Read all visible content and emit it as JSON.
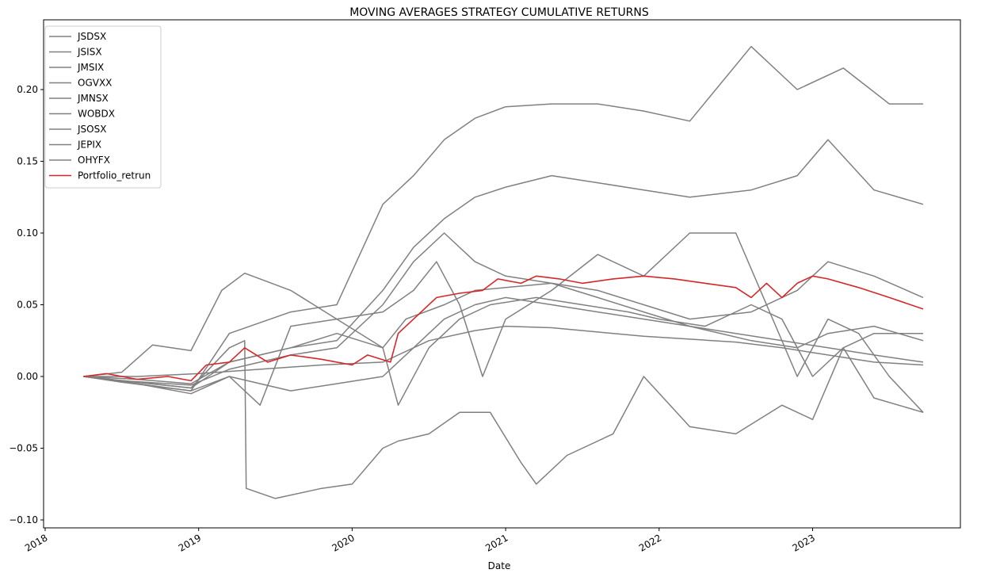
{
  "chart_data": {
    "type": "line",
    "title": "MOVING AVERAGES STRATEGY CUMULATIVE RETURNS",
    "xlabel": "Date",
    "ylabel": "",
    "xlim": [
      2017.9,
      2023.95
    ],
    "ylim": [
      -0.1,
      0.2
    ],
    "x_ticks": [
      {
        "value": 2018,
        "label": "2018"
      },
      {
        "value": 2019,
        "label": "2019"
      },
      {
        "value": 2020,
        "label": "2020"
      },
      {
        "value": 2021,
        "label": "2021"
      },
      {
        "value": 2022,
        "label": "2022"
      },
      {
        "value": 2023,
        "label": "2023"
      }
    ],
    "y_ticks": [
      {
        "value": -0.1,
        "label": "−0.10"
      },
      {
        "value": -0.05,
        "label": "−0.05"
      },
      {
        "value": 0.0,
        "label": "0.00"
      },
      {
        "value": 0.05,
        "label": "0.05"
      },
      {
        "value": 0.1,
        "label": "0.10"
      },
      {
        "value": 0.15,
        "label": "0.15"
      },
      {
        "value": 0.2,
        "label": "0.20"
      }
    ],
    "grid": false,
    "legend_placement": "top-left",
    "series": [
      {
        "name": "JSDSX",
        "color": "#808080",
        "x": [
          2018.25,
          2018.5,
          2018.95,
          2019.2,
          2019.6,
          2019.9,
          2020.2,
          2020.4,
          2020.6,
          2020.8,
          2021.0,
          2021.3,
          2021.6,
          2021.9,
          2022.2,
          2022.6,
          2022.9,
          2023.2,
          2023.5,
          2023.72
        ],
        "y": [
          0.0,
          -0.004,
          -0.01,
          0.03,
          0.045,
          0.05,
          0.12,
          0.14,
          0.165,
          0.18,
          0.188,
          0.19,
          0.19,
          0.185,
          0.178,
          0.23,
          0.2,
          0.215,
          0.19,
          0.19
        ]
      },
      {
        "name": "JSISX",
        "color": "#808080",
        "x": [
          2018.25,
          2018.5,
          2018.95,
          2019.2,
          2019.6,
          2019.9,
          2020.2,
          2020.4,
          2020.6,
          2020.8,
          2021.0,
          2021.3,
          2021.6,
          2021.9,
          2022.2,
          2022.6,
          2022.9,
          2023.1,
          2023.4,
          2023.72
        ],
        "y": [
          0.0,
          -0.003,
          -0.008,
          0.01,
          0.02,
          0.025,
          0.06,
          0.09,
          0.11,
          0.125,
          0.132,
          0.14,
          0.135,
          0.13,
          0.125,
          0.13,
          0.14,
          0.165,
          0.13,
          0.12
        ]
      },
      {
        "name": "JMSIX",
        "color": "#808080",
        "x": [
          2018.25,
          2018.5,
          2018.95,
          2019.2,
          2019.6,
          2019.9,
          2020.2,
          2020.4,
          2020.6,
          2020.8,
          2021.0,
          2021.3,
          2021.6,
          2021.9,
          2022.2,
          2022.6,
          2022.9,
          2023.1,
          2023.4,
          2023.72
        ],
        "y": [
          0.0,
          -0.003,
          -0.006,
          0.005,
          0.015,
          0.02,
          0.05,
          0.08,
          0.1,
          0.08,
          0.07,
          0.065,
          0.06,
          0.05,
          0.04,
          0.045,
          0.06,
          0.08,
          0.07,
          0.055
        ]
      },
      {
        "name": "OGVXX",
        "color": "#808080",
        "x": [
          2018.25,
          2018.6,
          2019.0,
          2019.4,
          2019.8,
          2020.2,
          2020.5,
          2020.8,
          2021.0,
          2021.3,
          2021.6,
          2021.9,
          2022.2,
          2022.5,
          2022.8,
          2023.1,
          2023.4,
          2023.72
        ],
        "y": [
          0.0,
          0.0,
          0.002,
          0.005,
          0.008,
          0.01,
          0.025,
          0.032,
          0.035,
          0.034,
          0.031,
          0.028,
          0.026,
          0.024,
          0.02,
          0.015,
          0.01,
          0.008
        ]
      },
      {
        "name": "JMNSX",
        "color": "#808080",
        "x": [
          2018.25,
          2018.5,
          2018.7,
          2018.95,
          2019.15,
          2019.3,
          2019.6,
          2019.9,
          2020.2,
          2020.35,
          2020.6,
          2020.8,
          2021.0,
          2021.3,
          2021.6,
          2021.9,
          2022.2,
          2022.6,
          2022.9,
          2023.1,
          2023.4,
          2023.72
        ],
        "y": [
          0.0,
          0.003,
          0.022,
          0.018,
          0.06,
          0.072,
          0.06,
          0.04,
          0.02,
          0.04,
          0.05,
          0.06,
          0.062,
          0.065,
          0.055,
          0.045,
          0.035,
          0.025,
          0.02,
          0.03,
          0.035,
          0.025
        ]
      },
      {
        "name": "WOBDX",
        "color": "#808080",
        "x": [
          2018.25,
          2018.6,
          2018.95,
          2019.2,
          2019.4,
          2019.6,
          2019.9,
          2020.2,
          2020.4,
          2020.55,
          2020.7,
          2020.85,
          2021.0,
          2021.3,
          2021.6,
          2021.9,
          2022.2,
          2022.5,
          2022.7,
          2022.9,
          2023.1,
          2023.3,
          2023.5,
          2023.72
        ],
        "y": [
          0.0,
          -0.005,
          -0.012,
          0.0,
          -0.02,
          0.035,
          0.04,
          0.045,
          0.06,
          0.08,
          0.05,
          0.0,
          0.04,
          0.06,
          0.085,
          0.07,
          0.1,
          0.1,
          0.05,
          0.0,
          0.04,
          0.03,
          0.0,
          -0.025
        ]
      },
      {
        "name": "JSOSX",
        "color": "#808080",
        "x": [
          2018.25,
          2018.6,
          2018.95,
          2019.2,
          2019.3,
          2019.31,
          2019.5,
          2019.8,
          2020.0,
          2020.2,
          2020.3,
          2020.5,
          2020.7,
          2020.9,
          2021.1,
          2021.2,
          2021.4,
          2021.7,
          2021.9,
          2022.2,
          2022.5,
          2022.8,
          2023.0,
          2023.2,
          2023.4,
          2023.72
        ],
        "y": [
          0.0,
          -0.004,
          -0.008,
          0.02,
          0.025,
          -0.078,
          -0.085,
          -0.078,
          -0.075,
          -0.05,
          -0.045,
          -0.04,
          -0.025,
          -0.025,
          -0.06,
          -0.075,
          -0.055,
          -0.04,
          0.0,
          -0.035,
          -0.04,
          -0.02,
          -0.03,
          0.02,
          0.03,
          0.03
        ]
      },
      {
        "name": "JEPIX",
        "color": "#808080",
        "x": [
          2018.25,
          2018.6,
          2018.95,
          2019.2,
          2019.6,
          2019.9,
          2020.2,
          2020.3,
          2020.5,
          2020.7,
          2020.9,
          2021.2,
          2021.5,
          2021.8,
          2022.0,
          2022.3,
          2022.6,
          2022.8,
          2023.0,
          2023.2,
          2023.4,
          2023.72
        ],
        "y": [
          0.0,
          -0.002,
          -0.005,
          0.01,
          0.02,
          0.03,
          0.02,
          -0.02,
          0.02,
          0.04,
          0.05,
          0.055,
          0.05,
          0.045,
          0.04,
          0.035,
          0.05,
          0.04,
          0.0,
          0.02,
          -0.015,
          -0.025
        ]
      },
      {
        "name": "OHYFX",
        "color": "#808080",
        "x": [
          2018.25,
          2018.6,
          2018.95,
          2019.2,
          2019.6,
          2019.9,
          2020.2,
          2020.4,
          2020.6,
          2020.8,
          2021.0,
          2021.3,
          2021.6,
          2021.9,
          2022.2,
          2022.5,
          2022.8,
          2023.1,
          2023.4,
          2023.72
        ],
        "y": [
          0.0,
          -0.005,
          -0.01,
          0.0,
          -0.01,
          -0.005,
          0.0,
          0.02,
          0.04,
          0.05,
          0.055,
          0.05,
          0.045,
          0.04,
          0.035,
          0.03,
          0.025,
          0.02,
          0.015,
          0.01
        ]
      },
      {
        "name": "Portfolio_retrun",
        "color": "#d62728",
        "x": [
          2018.25,
          2018.4,
          2018.6,
          2018.8,
          2018.95,
          2019.05,
          2019.2,
          2019.3,
          2019.45,
          2019.6,
          2019.8,
          2020.0,
          2020.1,
          2020.25,
          2020.3,
          2020.4,
          2020.55,
          2020.7,
          2020.85,
          2020.95,
          2021.1,
          2021.2,
          2021.35,
          2021.5,
          2021.7,
          2021.9,
          2022.1,
          2022.3,
          2022.5,
          2022.6,
          2022.7,
          2022.8,
          2022.9,
          2023.0,
          2023.1,
          2023.3,
          2023.5,
          2023.72
        ],
        "y": [
          0.0,
          0.002,
          -0.002,
          0.0,
          -0.003,
          0.008,
          0.01,
          0.02,
          0.01,
          0.015,
          0.012,
          0.008,
          0.015,
          0.01,
          0.03,
          0.04,
          0.055,
          0.058,
          0.06,
          0.068,
          0.065,
          0.07,
          0.068,
          0.065,
          0.068,
          0.07,
          0.068,
          0.065,
          0.062,
          0.055,
          0.065,
          0.055,
          0.065,
          0.07,
          0.068,
          0.062,
          0.055,
          0.047
        ]
      }
    ]
  }
}
